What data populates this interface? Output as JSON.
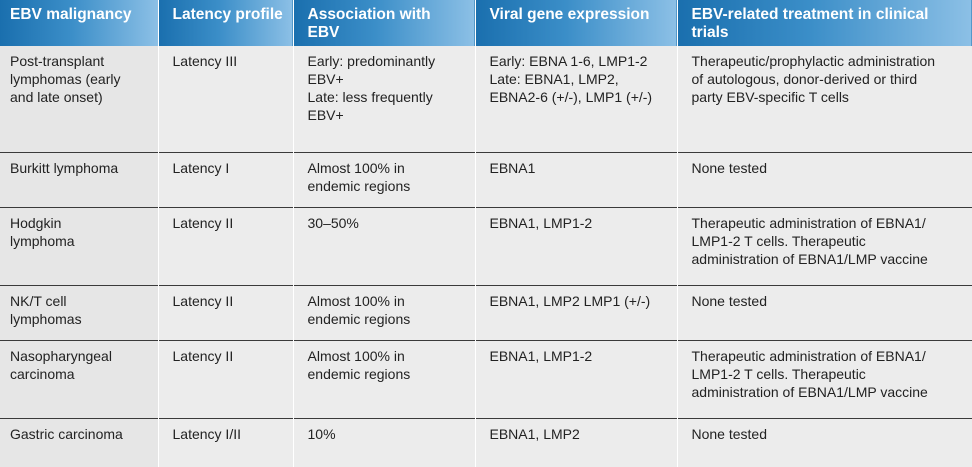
{
  "table": {
    "headers": [
      [
        "EBV",
        "malignancy"
      ],
      [
        "Latency",
        "profile"
      ],
      [
        "Association with",
        "EBV"
      ],
      [
        "Viral gene",
        "expression"
      ],
      [
        "EBV-related treatment in",
        "clinical trials"
      ]
    ],
    "rows": [
      {
        "malignancy": [
          "Post-transplant",
          "lymphomas (early",
          "and late onset)"
        ],
        "latency": [
          "Latency III"
        ],
        "association": [
          "Early: predominantly",
          "EBV+",
          "Late: less frequently",
          "EBV+"
        ],
        "expression": [
          "Early: EBNA 1-6, LMP1-2",
          "Late: EBNA1, LMP2,",
          "EBNA2-6 (+/-), LMP1 (+/-)"
        ],
        "treatment": [
          "Therapeutic/prophylactic administration",
          "of autologous, donor-derived or third",
          "party EBV-specific T cells"
        ]
      },
      {
        "malignancy": [
          "Burkitt lymphoma"
        ],
        "latency": [
          "Latency I"
        ],
        "association": [
          "Almost 100% in",
          "endemic regions"
        ],
        "expression": [
          "EBNA1"
        ],
        "treatment": [
          "None tested"
        ]
      },
      {
        "malignancy": [
          "Hodgkin",
          "lymphoma"
        ],
        "latency": [
          "Latency II"
        ],
        "association": [
          "30–50%"
        ],
        "expression": [
          "EBNA1, LMP1-2"
        ],
        "treatment": [
          "Therapeutic administration of EBNA1/",
          "LMP1-2 T cells. Therapeutic",
          "administration of EBNA1/LMP vaccine"
        ]
      },
      {
        "malignancy": [
          "NK/T cell",
          "lymphomas"
        ],
        "latency": [
          "Latency II"
        ],
        "association": [
          "Almost 100% in",
          "endemic regions"
        ],
        "expression": [
          "EBNA1, LMP2 LMP1 (+/-)"
        ],
        "treatment": [
          "None tested"
        ]
      },
      {
        "malignancy": [
          "Nasopharyngeal",
          "carcinoma"
        ],
        "latency": [
          "Latency II"
        ],
        "association": [
          "Almost 100% in",
          "endemic regions"
        ],
        "expression": [
          "EBNA1, LMP1-2"
        ],
        "treatment": [
          "Therapeutic administration of EBNA1/",
          "LMP1-2 T cells. Therapeutic",
          "administration of EBNA1/LMP vaccine"
        ]
      },
      {
        "malignancy": [
          "Gastric carcinoma"
        ],
        "latency": [
          "Latency I/II"
        ],
        "association": [
          "10%"
        ],
        "expression": [
          "EBNA1, LMP2"
        ],
        "treatment": [
          "None tested"
        ]
      }
    ]
  }
}
